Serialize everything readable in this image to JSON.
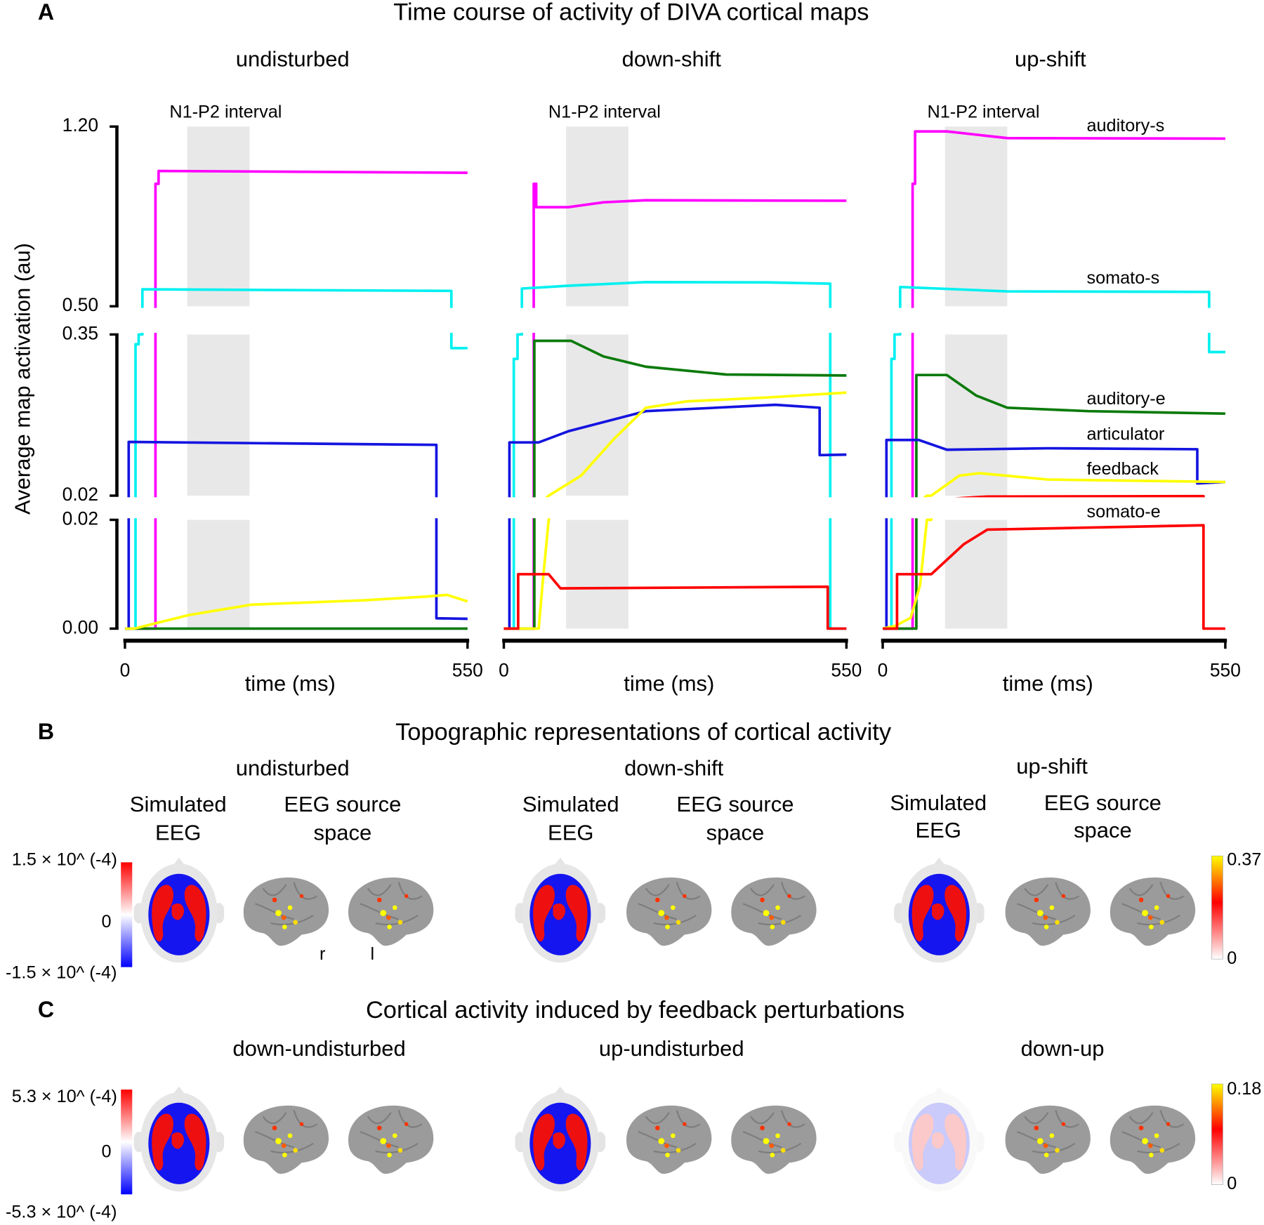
{
  "figure": {
    "panel_a": {
      "label": "A",
      "title": "Time course of activity of DIVA cortical maps",
      "ylabel": "Average map activation (au)",
      "y_segments": [
        {
          "ylim": [
            0.5,
            1.2
          ],
          "yticks": [
            {
              "value": 0.5,
              "label": "0.50"
            },
            {
              "value": 1.2,
              "label": "1.20"
            }
          ]
        },
        {
          "ylim": [
            0.02,
            0.35
          ],
          "yticks": [
            0.02,
            0.35
          ]
        },
        {
          "ylim": [
            0,
            0.02
          ],
          "yticks": [
            {
              "value": 0,
              "label": "0.00"
            },
            0.02
          ]
        }
      ]
    },
    "panel_b": {
      "label": "B",
      "title": "Topographic representations of cortical activity",
      "conditions": [
        {
          "title": "undisturbed",
          "headers": [
            [
              "Simulated",
              "EEG"
            ],
            [
              "EEG source",
              "space"
            ]
          ]
        },
        {
          "title": "down-shift",
          "headers": [
            [
              "Simulated",
              "EEG"
            ],
            [
              "EEG source",
              "space"
            ]
          ]
        },
        {
          "title": "up-shift",
          "headers": [
            [
              "Simulated",
              "EEG"
            ],
            [
              "EEG source",
              "space"
            ]
          ]
        }
      ],
      "eeg_colorbar": {
        "max": "1.5 × 10^ (-4)",
        "mid": "0",
        "min": "-1.5 × 10^ (-4)"
      },
      "source_colorbar": {
        "max": "0.37",
        "min": "0"
      },
      "hemisphere_labels": [
        "r",
        "l"
      ]
    },
    "panel_c": {
      "label": "C",
      "title": "Cortical activity induced by feedback perturbations",
      "conditions": [
        "down-undisturbed",
        "up-undisturbed",
        "down-up"
      ],
      "eeg_colorbar": {
        "max": "5.3 × 10^ (-4)",
        "mid": "0",
        "min": "-5.3 × 10^ (-4)"
      },
      "source_colorbar": {
        "max": "0.18",
        "min": "0"
      }
    }
  },
  "chart_data": [
    {
      "type": "line",
      "title": "undisturbed",
      "xlabel": "time (ms)",
      "xlim": [
        0,
        550
      ],
      "xticks": [
        0,
        550
      ],
      "shade": {
        "label": "N1-P2 interval",
        "x": [
          100,
          200
        ]
      },
      "series": [
        {
          "color": "#ff00ff",
          "x": [
            0,
            49,
            49,
            54,
            54,
            550
          ],
          "values": [
            0,
            0,
            0.977,
            0.977,
            1.027,
            1.02
          ]
        },
        {
          "color": "#00f0f0",
          "x": [
            0,
            17,
            17,
            22,
            22,
            28,
            28,
            524,
            524,
            550
          ],
          "values": [
            0,
            0,
            0.33,
            0.33,
            0.35,
            0.35,
            0.566,
            0.56,
            0.322,
            0.322
          ]
        },
        {
          "color": "#0a7a0a",
          "x": [
            0,
            550
          ],
          "values": [
            0,
            0
          ]
        },
        {
          "color": "#1414e0",
          "x": [
            0,
            6,
            6,
            500,
            500,
            550
          ],
          "values": [
            0,
            0,
            0.13,
            0.124,
            0.0019,
            0.0018
          ]
        },
        {
          "color": "#ffff00",
          "x": [
            0,
            15,
            50,
            103,
            203,
            382,
            485,
            517,
            550
          ],
          "values": [
            0,
            0,
            0.001,
            0.0025,
            0.0044,
            0.0052,
            0.0059,
            0.0062,
            0.005
          ]
        }
      ]
    },
    {
      "type": "line",
      "title": "down-shift",
      "xlabel": "time (ms)",
      "xlim": [
        0,
        550
      ],
      "xticks": [
        0,
        550
      ],
      "shade": {
        "label": "N1-P2 interval",
        "x": [
          100,
          200
        ]
      },
      "series": [
        {
          "color": "#ff00ff",
          "x": [
            0,
            48,
            48,
            52,
            52,
            104,
            160,
            228,
            550
          ],
          "values": [
            0,
            0,
            0.977,
            0.977,
            0.886,
            0.886,
            0.905,
            0.913,
            0.911
          ]
        },
        {
          "color": "#00f0f0",
          "x": [
            0,
            16,
            16,
            22,
            22,
            29,
            29,
            104,
            228,
            423,
            524,
            524,
            550
          ],
          "values": [
            0,
            0,
            0.3,
            0.3,
            0.35,
            0.35,
            0.569,
            0.58,
            0.594,
            0.593,
            0.588,
            0,
            0
          ]
        },
        {
          "color": "#0a7a0a",
          "x": [
            0,
            49,
            49,
            108,
            160,
            228,
            357,
            550
          ],
          "values": [
            0,
            0,
            0.337,
            0.337,
            0.305,
            0.284,
            0.268,
            0.266
          ]
        },
        {
          "color": "#1414e0",
          "x": [
            0,
            9,
            9,
            56,
            104,
            228,
            436,
            507,
            507,
            550
          ],
          "values": [
            0,
            0,
            0.129,
            0.129,
            0.152,
            0.193,
            0.206,
            0.2,
            0.103,
            0.104
          ]
        },
        {
          "color": "#ffff00",
          "x": [
            0,
            56,
            62,
            72,
            124,
            176,
            228,
            293,
            423,
            550
          ],
          "values": [
            0,
            0,
            0.008,
            0.02,
            0.061,
            0.135,
            0.2,
            0.213,
            0.221,
            0.231
          ]
        },
        {
          "color": "#ff0000",
          "x": [
            0,
            23,
            23,
            72,
            91,
            520,
            520,
            550
          ],
          "values": [
            0,
            0,
            0.01,
            0.01,
            0.0074,
            0.0077,
            0,
            0
          ]
        }
      ]
    },
    {
      "type": "line",
      "title": "up-shift",
      "xlabel": "time (ms)",
      "xlim": [
        0,
        550
      ],
      "xticks": [
        0,
        550
      ],
      "shade": {
        "label": "N1-P2 interval",
        "x": [
          100,
          200
        ]
      },
      "series": [
        {
          "name": "auditory-s",
          "color": "#ff00ff",
          "x": [
            0,
            48,
            48,
            52,
            52,
            103,
            200,
            550
          ],
          "values": [
            0,
            0,
            0.977,
            0.977,
            1.181,
            1.181,
            1.155,
            1.153
          ]
        },
        {
          "name": "somato-s",
          "color": "#00f0f0",
          "x": [
            0,
            14,
            14,
            19,
            19,
            28,
            28,
            200,
            524,
            524,
            550
          ],
          "values": [
            0,
            0,
            0.3,
            0.3,
            0.35,
            0.35,
            0.575,
            0.558,
            0.556,
            0.314,
            0.314
          ]
        },
        {
          "name": "auditory-e",
          "color": "#0a7a0a",
          "x": [
            0,
            54,
            54,
            103,
            150,
            200,
            330,
            550
          ],
          "values": [
            0,
            0,
            0.267,
            0.267,
            0.225,
            0.2,
            0.193,
            0.188
          ]
        },
        {
          "name": "articulator",
          "color": "#1414e0",
          "x": [
            0,
            6,
            6,
            58,
            103,
            265,
            505,
            505,
            550
          ],
          "values": [
            0,
            0,
            0.134,
            0.134,
            0.114,
            0.117,
            0.115,
            0.045,
            0.048
          ]
        },
        {
          "name": "feedback",
          "color": "#ffff00",
          "x": [
            0,
            20,
            45,
            60,
            71,
            78,
            123,
            155,
            265,
            550
          ],
          "values": [
            0,
            0.0005,
            0.002,
            0.008,
            0.02,
            0.02,
            0.061,
            0.066,
            0.053,
            0.048
          ]
        },
        {
          "name": "somato-e",
          "color": "#ff0000",
          "x": [
            0,
            23,
            23,
            78,
            130,
            168,
            300,
            515,
            515,
            550
          ],
          "values": [
            0,
            0,
            0.01,
            0.01,
            0.0155,
            0.0182,
            0.0185,
            0.019,
            0,
            0
          ]
        }
      ]
    }
  ]
}
